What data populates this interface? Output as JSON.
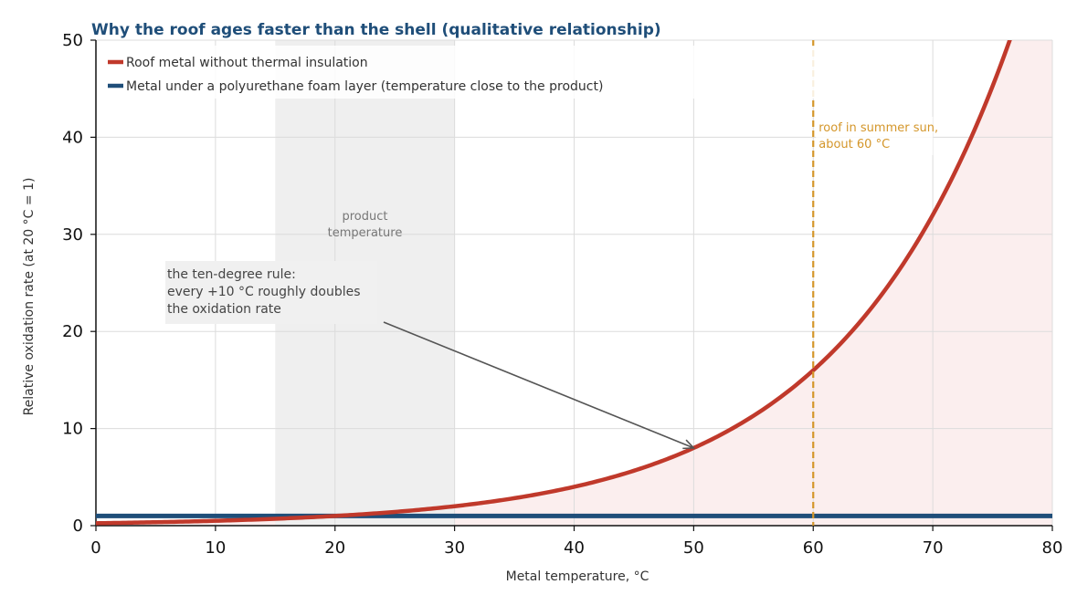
{
  "chart_data": {
    "type": "line",
    "title": "Why the roof ages faster than the shell (qualitative relationship)",
    "xlabel": "Metal temperature, °C",
    "ylabel": "Relative oxidation rate (at 20 °C = 1)",
    "xlim": [
      0,
      80
    ],
    "ylim": [
      0,
      50
    ],
    "xticks": [
      0,
      10,
      20,
      30,
      40,
      50,
      60,
      70,
      80
    ],
    "yticks": [
      0,
      10,
      20,
      30,
      40,
      50
    ],
    "grid": true,
    "legend_position": "top-left",
    "series": [
      {
        "name": "Roof metal without thermal insulation",
        "color": "#c0392b",
        "x": [
          0,
          10,
          20,
          30,
          40,
          50,
          60,
          70,
          76.5
        ],
        "values": [
          0.25,
          0.5,
          1,
          2,
          4,
          8,
          16,
          32,
          50
        ],
        "fill": "#fbeeee"
      },
      {
        "name": "Metal under a polyurethane foam layer (temperature close to the product)",
        "color": "#1f4e79",
        "x": [
          0,
          80
        ],
        "values": [
          1,
          1
        ]
      }
    ],
    "band": {
      "x_start": 15,
      "x_end": 30,
      "label_lines": [
        "product",
        "temperature"
      ]
    },
    "vline": {
      "x": 60,
      "label_lines": [
        "roof in summer sun,",
        "about 60 °C"
      ],
      "color": "#d4962a"
    },
    "annotation": {
      "text_lines": [
        "the ten-degree rule:",
        "every +10 °C roughly doubles",
        "the oxidation rate"
      ],
      "arrow_to": [
        50,
        8
      ]
    }
  }
}
